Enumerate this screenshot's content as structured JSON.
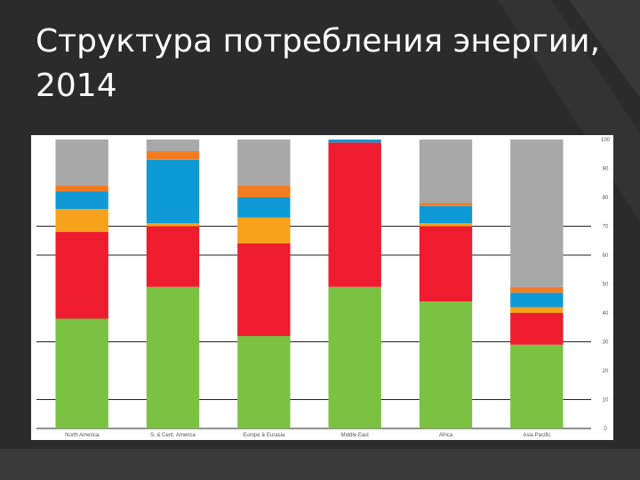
{
  "slide": {
    "title_line1": "Структура потребления энергии,",
    "title_line2": "2014"
  },
  "chart_data": {
    "type": "bar",
    "stacked": true,
    "categories": [
      "North America",
      "S. & Cent. America",
      "Europe & Eurasia",
      "Middle East",
      "Africa",
      "Asia Pacific"
    ],
    "series": [
      {
        "color": "#7bc142",
        "values": [
          38,
          49,
          32,
          49,
          44,
          29
        ]
      },
      {
        "color": "#ee1c2e",
        "values": [
          30,
          21,
          32,
          50,
          26,
          11
        ]
      },
      {
        "color": "#f7a21b",
        "values": [
          8,
          1,
          9,
          0,
          1,
          2
        ]
      },
      {
        "color": "#0e9ad7",
        "values": [
          6,
          22,
          7,
          1,
          6,
          5
        ]
      },
      {
        "color": "#f47c20",
        "values": [
          2,
          3,
          4,
          0,
          1,
          2
        ]
      },
      {
        "color": "#a8a8a8",
        "values": [
          16,
          4,
          16,
          0,
          22,
          51
        ]
      }
    ],
    "ylim": [
      0,
      100
    ],
    "yticks": [
      0,
      10,
      20,
      30,
      40,
      50,
      60,
      70,
      80,
      90,
      100
    ],
    "gridlines": [
      0,
      10,
      30,
      60,
      70
    ],
    "legend": "none"
  }
}
